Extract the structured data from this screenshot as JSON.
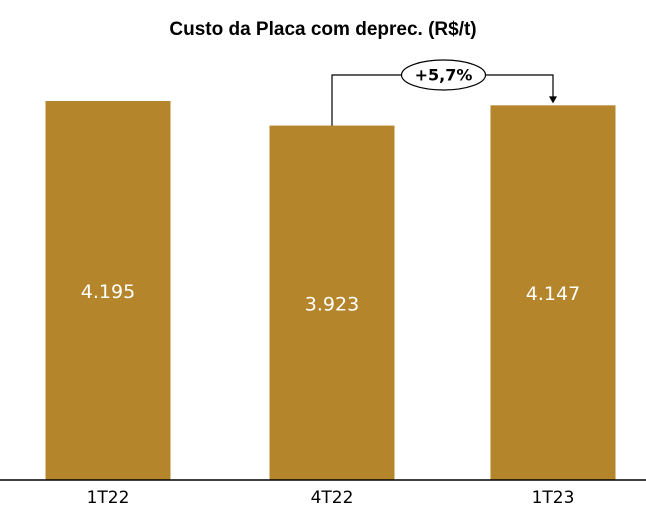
{
  "chart_data": {
    "type": "bar",
    "title": "Custo da Placa com deprec. (R$/t)",
    "categories": [
      "1T22",
      "4T22",
      "1T23"
    ],
    "values": [
      4195,
      3923,
      4147
    ],
    "value_labels": [
      "4.195",
      "3.923",
      "4.147"
    ],
    "color": "#b5852b",
    "annotation": "+5,7%"
  }
}
